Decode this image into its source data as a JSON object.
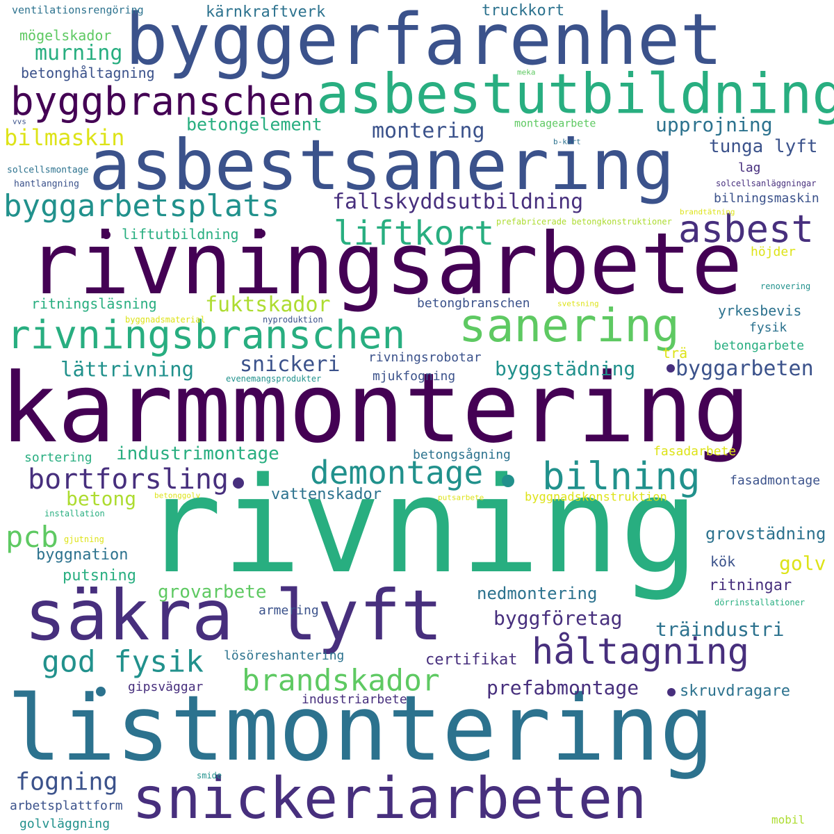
{
  "colors": {
    "background": "#ffffff",
    "palette": {
      "p1": "#440154",
      "p2": "#472f7d",
      "p3": "#3b528b",
      "p4": "#2c728e",
      "p5": "#21918c",
      "p6": "#28ae80",
      "p7": "#5ec962",
      "p8": "#addc30",
      "p9": "#dde318"
    }
  },
  "words": [
    {
      "text": "byggerfarenhet",
      "color": "p3"
    },
    {
      "text": "asbestutbildning",
      "color": "p6"
    },
    {
      "text": "asbestsanering",
      "color": "p3"
    },
    {
      "text": "byggbranschen",
      "color": "p1"
    },
    {
      "text": "rivningsarbete",
      "color": "p1"
    },
    {
      "text": "karmmontering",
      "color": "p1"
    },
    {
      "text": "rivning",
      "color": "p6"
    },
    {
      "text": "listmontering",
      "color": "p4"
    },
    {
      "text": "säkra lyft",
      "color": "p2"
    },
    {
      "text": "snickeriarbeten",
      "color": "p2"
    },
    {
      "text": "rivningsbranschen",
      "color": "p6"
    },
    {
      "text": "sanering",
      "color": "p7"
    },
    {
      "text": "byggarbetsplats",
      "color": "p5"
    },
    {
      "text": "liftkort",
      "color": "p6"
    },
    {
      "text": "asbest",
      "color": "p2"
    },
    {
      "text": "håltagning",
      "color": "p2"
    },
    {
      "text": "bilning",
      "color": "p5"
    },
    {
      "text": "demontage",
      "color": "p5"
    },
    {
      "text": "bortforsling",
      "color": "p2"
    },
    {
      "text": "brandskador",
      "color": "p7"
    },
    {
      "text": "god fysik",
      "color": "p5"
    },
    {
      "text": "pcb",
      "color": "p7"
    },
    {
      "text": "fogning",
      "color": "p3"
    },
    {
      "text": "fallskyddsutbildning",
      "color": "p2"
    },
    {
      "text": "montering",
      "color": "p3"
    },
    {
      "text": "betongelement",
      "color": "p6"
    },
    {
      "text": "bilmaskin",
      "color": "p9"
    },
    {
      "text": "murning",
      "color": "p6"
    },
    {
      "text": "upprojning",
      "color": "p4"
    },
    {
      "text": "tunga lyft",
      "color": "p3"
    },
    {
      "text": "fuktskador",
      "color": "p8"
    },
    {
      "text": "snickeri",
      "color": "p3"
    },
    {
      "text": "byggstädning",
      "color": "p5"
    },
    {
      "text": "byggarbeten",
      "color": "p3"
    },
    {
      "text": "lättrivning",
      "color": "p5"
    },
    {
      "text": "industrimontage",
      "color": "p6"
    },
    {
      "text": "betong",
      "color": "p8"
    },
    {
      "text": "prefabmontage",
      "color": "p2"
    },
    {
      "text": "grovarbete",
      "color": "p7"
    },
    {
      "text": "nedmontering",
      "color": "p4"
    },
    {
      "text": "byggföretag",
      "color": "p2"
    },
    {
      "text": "träindustri",
      "color": "p4"
    },
    {
      "text": "grovstädning",
      "color": "p4"
    },
    {
      "text": "vattenskador",
      "color": "p4"
    },
    {
      "text": "byggnation",
      "color": "p4"
    },
    {
      "text": "putsning",
      "color": "p6"
    },
    {
      "text": "golv",
      "color": "p9"
    },
    {
      "text": "ritningar",
      "color": "p2"
    },
    {
      "text": "skruvdragare",
      "color": "p4"
    },
    {
      "text": "kärnkraftverk",
      "color": "p4"
    },
    {
      "text": "truckkort",
      "color": "p4"
    },
    {
      "text": "betonghåltagning",
      "color": "p3"
    },
    {
      "text": "mögelskador",
      "color": "p7"
    },
    {
      "text": "ventilationsrengöring",
      "color": "p4"
    },
    {
      "text": "liftutbildning",
      "color": "p6"
    },
    {
      "text": "ritningsläsning",
      "color": "p6"
    },
    {
      "text": "betongbranschen",
      "color": "p3"
    },
    {
      "text": "yrkesbevis",
      "color": "p4"
    },
    {
      "text": "fysik",
      "color": "p4"
    },
    {
      "text": "betongarbete",
      "color": "p6"
    },
    {
      "text": "trä",
      "color": "p9"
    },
    {
      "text": "rivningsrobotar",
      "color": "p3"
    },
    {
      "text": "mjukfogning",
      "color": "p3"
    },
    {
      "text": "sortering",
      "color": "p6"
    },
    {
      "text": "betongsågning",
      "color": "p4"
    },
    {
      "text": "fasadarbete",
      "color": "p9"
    },
    {
      "text": "fasadmontage",
      "color": "p3"
    },
    {
      "text": "byggnadskonstruktion",
      "color": "p9"
    },
    {
      "text": "kök",
      "color": "p3"
    },
    {
      "text": "armering",
      "color": "p3"
    },
    {
      "text": "certifikat",
      "color": "p2"
    },
    {
      "text": "lösöreshantering",
      "color": "p4"
    },
    {
      "text": "gipsväggar",
      "color": "p2"
    },
    {
      "text": "industriarbete",
      "color": "p2"
    },
    {
      "text": "arbetsplattform",
      "color": "p3"
    },
    {
      "text": "golvläggning",
      "color": "p5"
    },
    {
      "text": "mobil",
      "color": "p8"
    },
    {
      "text": "lag",
      "color": "p2"
    },
    {
      "text": "bilningsmaskin",
      "color": "p3"
    },
    {
      "text": "höjder",
      "color": "p9"
    },
    {
      "text": "montagearbete",
      "color": "p7"
    },
    {
      "text": "solcellsmontage",
      "color": "p4"
    },
    {
      "text": "hantlangning",
      "color": "p3"
    },
    {
      "text": "solcellsanläggningar",
      "color": "p2"
    },
    {
      "text": "brandtätning",
      "color": "p9"
    },
    {
      "text": "prefabricerade betongkonstruktioner",
      "color": "p8"
    },
    {
      "text": "renovering",
      "color": "p5"
    },
    {
      "text": "svetsning",
      "color": "p9"
    },
    {
      "text": "byggnadsmaterial",
      "color": "p9"
    },
    {
      "text": "nyproduktion",
      "color": "p3"
    },
    {
      "text": "evenemangsprodukter",
      "color": "p5"
    },
    {
      "text": "betonggolv",
      "color": "p9"
    },
    {
      "text": "putsarbete",
      "color": "p9"
    },
    {
      "text": "installation",
      "color": "p6"
    },
    {
      "text": "gjutning",
      "color": "p9"
    },
    {
      "text": "dörrinstallationer",
      "color": "p6"
    },
    {
      "text": "smide",
      "color": "p5"
    },
    {
      "text": "vvs",
      "color": "p3"
    },
    {
      "text": "meka",
      "color": "p7"
    },
    {
      "text": "b-kort",
      "color": "p4"
    }
  ]
}
